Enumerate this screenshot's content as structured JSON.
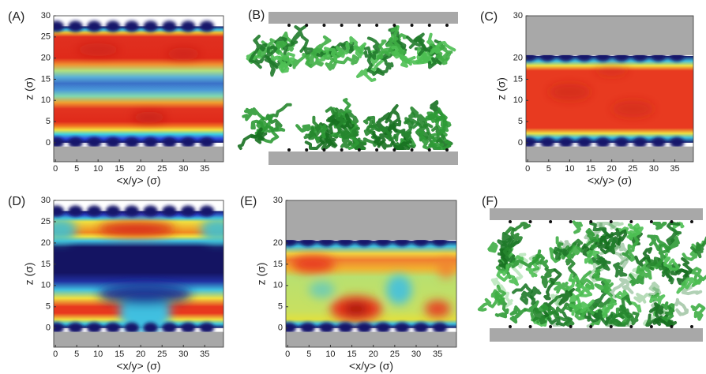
{
  "chart_data": [
    {
      "type": "heatmap",
      "title": "(A)",
      "xlabel": "<x/y> (σ)",
      "ylabel": "z (σ)",
      "xlim": [
        -0.4,
        39.4
      ],
      "ylim": [
        -4.5,
        30
      ],
      "xticks": [
        0,
        5,
        10,
        15,
        20,
        25,
        30,
        35
      ],
      "yticks": [
        0,
        5,
        10,
        15,
        20,
        25,
        30
      ]
    },
    {
      "type": "heatmap",
      "title": "(C)",
      "xlabel": "<x/y> (σ)",
      "ylabel": "z (σ)",
      "xlim": [
        -0.4,
        39.4
      ],
      "ylim": [
        -4.5,
        30
      ],
      "xticks": [
        0,
        5,
        10,
        15,
        20,
        25,
        30,
        35
      ],
      "yticks": [
        0,
        5,
        10,
        15,
        20,
        30
      ]
    },
    {
      "type": "heatmap",
      "title": "(D)",
      "xlabel": "<x/y> (σ)",
      "ylabel": "z (σ)",
      "xlim": [
        -0.4,
        39.4
      ],
      "ylim": [
        -4.5,
        30
      ],
      "xticks": [
        0,
        5,
        10,
        15,
        20,
        25,
        30,
        35
      ],
      "yticks": [
        0,
        5,
        10,
        15,
        20,
        25,
        30
      ]
    },
    {
      "type": "heatmap",
      "title": "(E)",
      "xlabel": "<x/y> (σ)",
      "ylabel": "z (σ)",
      "xlim": [
        -0.4,
        39.4
      ],
      "ylim": [
        -4.5,
        30
      ],
      "xticks": [
        0,
        5,
        10,
        15,
        20,
        25,
        30,
        35
      ],
      "yticks": [
        0,
        5,
        10,
        15,
        20,
        30
      ]
    }
  ],
  "images": [
    {
      "label": "(B)"
    },
    {
      "label": "(F)"
    }
  ]
}
